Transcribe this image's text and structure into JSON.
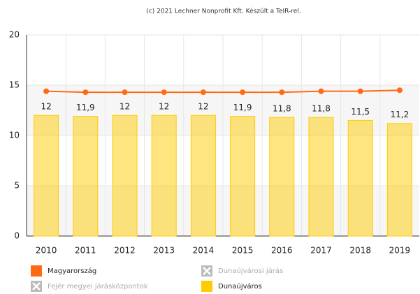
{
  "chart_data": {
    "type": "bar-line",
    "title": "(c) 2021 Lechner Nonprofit Kft. Készült a TeIR-rel.",
    "categories": [
      "2010",
      "2011",
      "2012",
      "2013",
      "2014",
      "2015",
      "2016",
      "2017",
      "2018",
      "2019"
    ],
    "series": [
      {
        "name": "Magyarország",
        "type": "line",
        "color": "#ff6a13",
        "values": [
          14.4,
          14.3,
          14.3,
          14.3,
          14.3,
          14.3,
          14.3,
          14.4,
          14.4,
          14.5
        ]
      },
      {
        "name": "Dunaújváros",
        "type": "bar",
        "color": "#ffcc00",
        "values": [
          12,
          11.9,
          12,
          12,
          12,
          11.9,
          11.8,
          11.8,
          11.5,
          11.2
        ],
        "value_labels": [
          "12",
          "11,9",
          "12",
          "12",
          "12",
          "11,9",
          "11,8",
          "11,8",
          "11,5",
          "11,2"
        ]
      }
    ],
    "hidden_series": [
      "Dunaújvárosi járás",
      "Fejér megyei járásközpontok"
    ],
    "ylim": [
      0,
      20
    ],
    "yticks": [
      0,
      5,
      10,
      15,
      20
    ],
    "grid": true
  }
}
